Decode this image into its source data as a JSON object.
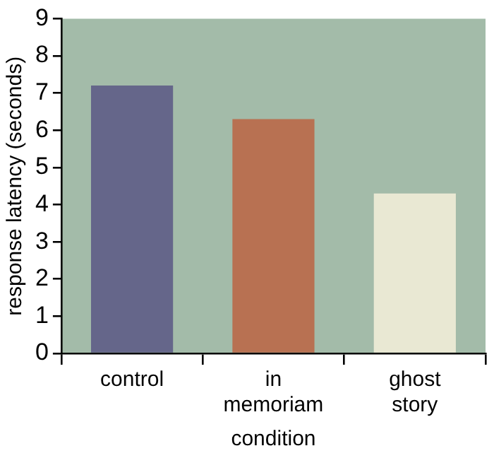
{
  "chart_data": {
    "type": "bar",
    "xlabel": "condition",
    "ylabel": "response latency (seconds)",
    "categories": [
      "control",
      "in memoriam",
      "ghost story"
    ],
    "values": [
      7.2,
      6.3,
      4.3
    ],
    "colors": [
      "#65668a",
      "#b87152",
      "#e9e8d3"
    ],
    "ylim": [
      0,
      9
    ],
    "yticks": [
      0,
      1,
      2,
      3,
      4,
      5,
      6,
      7,
      8,
      9
    ],
    "legend": false
  }
}
